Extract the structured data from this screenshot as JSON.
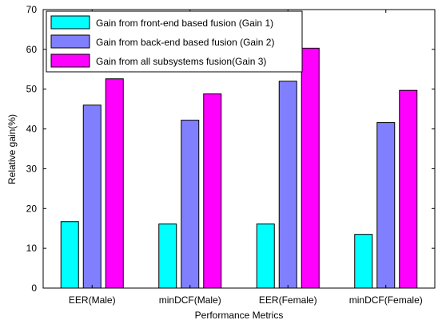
{
  "chart_data": {
    "type": "bar",
    "xlabel": "Performance Metrics",
    "ylabel": "Relative gain(%)",
    "ylim": [
      0,
      70
    ],
    "yticks": [
      0,
      10,
      20,
      30,
      40,
      50,
      60,
      70
    ],
    "categories": [
      "EER(Male)",
      "minDCF(Male)",
      "EER(Female)",
      "minDCF(Female)"
    ],
    "series": [
      {
        "name": "Gain from front-end based fusion (Gain 1)",
        "color": "#00ffff",
        "values": [
          16.7,
          16.1,
          16.1,
          13.5
        ]
      },
      {
        "name": "Gain from back-end  based fusion (Gain 2)",
        "color": "#8080ff",
        "values": [
          46.0,
          42.2,
          52.0,
          41.6
        ]
      },
      {
        "name": "Gain from all subsystems fusion(Gain 3)",
        "color": "#ff00ff",
        "values": [
          52.6,
          48.8,
          60.3,
          49.7
        ]
      }
    ],
    "grid": false,
    "legend_position": "top-left"
  }
}
